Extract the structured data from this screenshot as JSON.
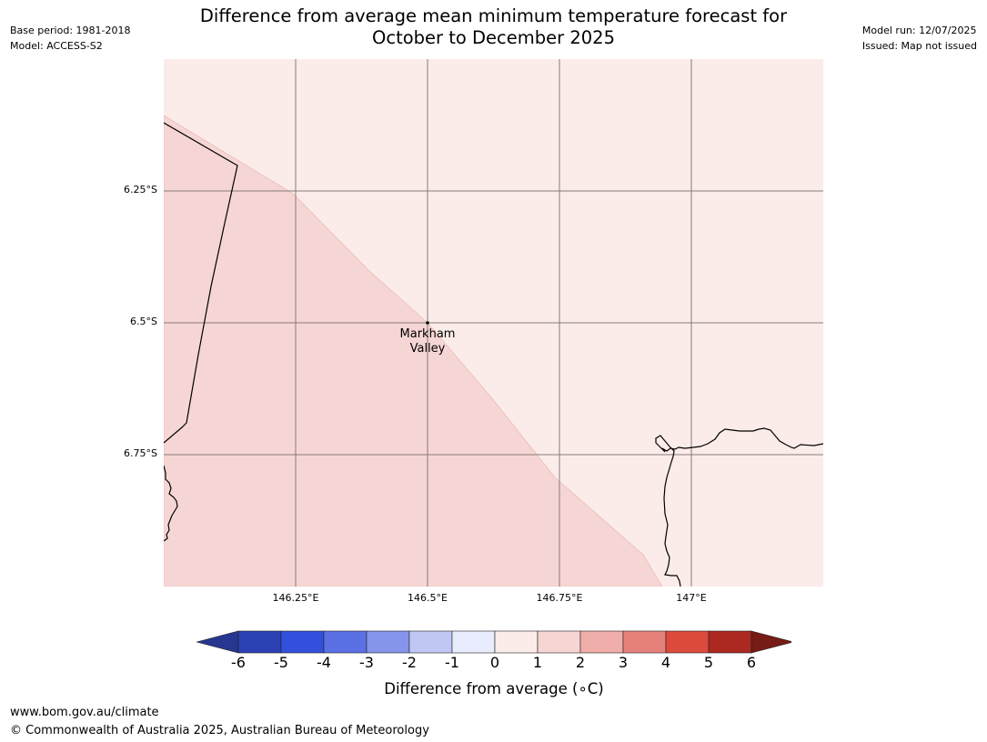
{
  "header": {
    "left": [
      "Base period: 1981-2018",
      "Model: ACCESS-S2"
    ],
    "right": [
      "Model run: 12/07/2025",
      "Issued: Map not issued"
    ],
    "title": [
      "Difference from average mean minimum temperature forecast for",
      "October to December 2025"
    ]
  },
  "map": {
    "lon_range": [
      146.0,
      147.25
    ],
    "lat_range": [
      -6.0,
      -7.0
    ],
    "lat_gridlines": [
      -6.25,
      -6.5,
      -6.75
    ],
    "lon_gridlines": [
      146.25,
      146.5,
      146.75,
      147.0
    ],
    "lat_labels": [
      "6.25°S",
      "6.5°S",
      "6.75°S"
    ],
    "lon_labels": [
      "146.25°E",
      "146.5°E",
      "146.75°E",
      "147°E"
    ],
    "colors": {
      "band_1_2": "#f6d6d4",
      "band_0_1": "#fbece9",
      "gridline": "#7a7070",
      "coast": "#000000"
    },
    "place": {
      "name": [
        "Markham",
        "Valley"
      ],
      "lon": 146.5,
      "lat": -6.5
    }
  },
  "colorbar": {
    "ticks": [
      "-6",
      "-5",
      "-4",
      "-3",
      "-2",
      "-1",
      "0",
      "1",
      "2",
      "3",
      "4",
      "5",
      "6"
    ],
    "colors": [
      "#27378f",
      "#2b41b4",
      "#3350dd",
      "#5b70e4",
      "#8595ec",
      "#c1c7f5",
      "#e9ecfc",
      "#fcece9",
      "#f7d5d3",
      "#efaea9",
      "#e6807a",
      "#dc4a3e",
      "#ab2920",
      "#761b15"
    ],
    "label": "Difference from average (∘C)"
  },
  "footer": {
    "url": "www.bom.gov.au/climate",
    "copyright": "© Commonwealth of Australia 2025, Australian Bureau of Meteorology"
  }
}
